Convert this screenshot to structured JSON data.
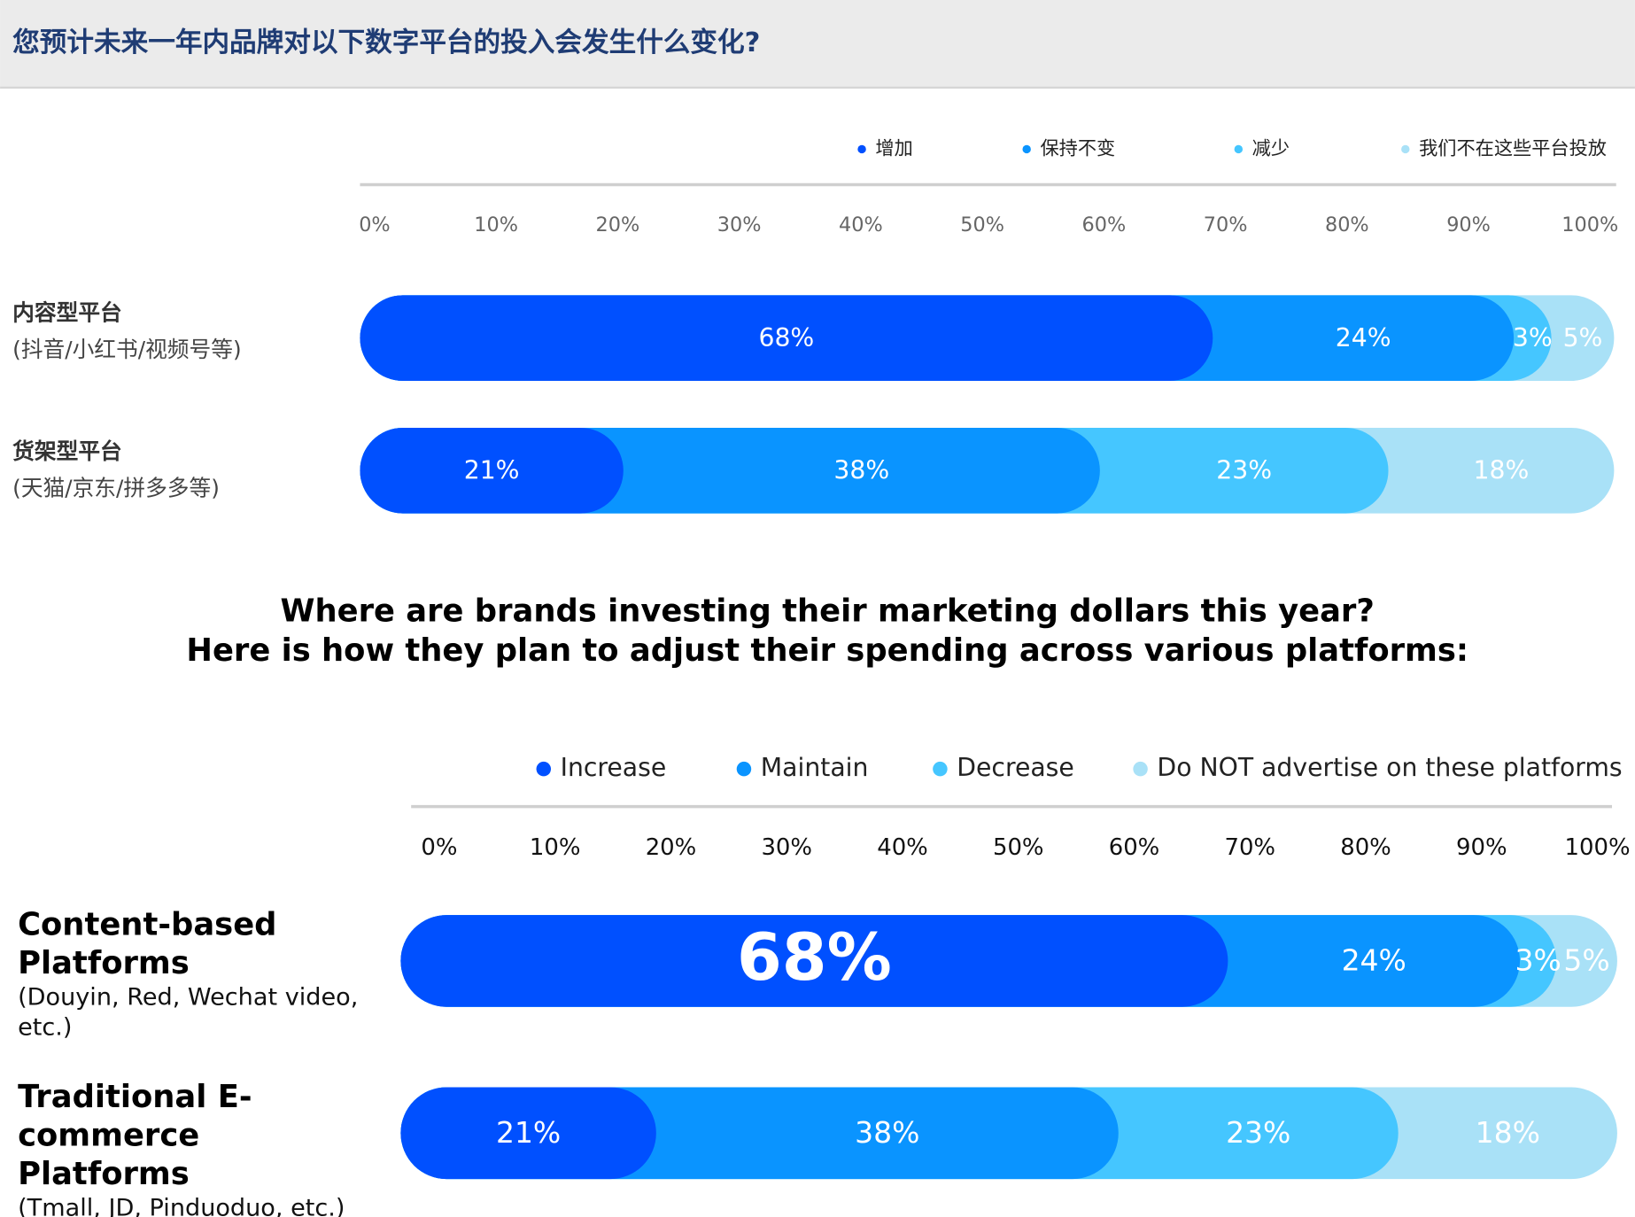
{
  "chart_data": [
    {
      "type": "bar",
      "orientation": "horizontal",
      "stacked": true,
      "title": "您预计未来一年内品牌对以下数字平台的投入会发生什么变化?",
      "categories": [
        "内容型平台",
        "货架型平台"
      ],
      "category_notes": [
        "(抖音/小红书/视频号等)",
        "(天猫/京东/拼多多等)"
      ],
      "series": [
        {
          "name": "增加",
          "color": "#0050ff",
          "values": [
            68,
            21
          ],
          "value_labels": [
            "68%",
            "21%"
          ]
        },
        {
          "name": "保持不变",
          "color": "#0a94ff",
          "values": [
            24,
            38
          ],
          "value_labels": [
            "24%",
            "38%"
          ]
        },
        {
          "name": "减少",
          "color": "#45c6ff",
          "values": [
            3,
            23
          ],
          "value_labels": [
            "3%",
            "23%"
          ]
        },
        {
          "name": "我们不在这些平台投放",
          "color": "#a9e1f7",
          "values": [
            5,
            18
          ],
          "value_labels": [
            "5%",
            "18%"
          ]
        }
      ],
      "xlim": [
        0,
        100
      ],
      "xticks": [
        {
          "value": 0,
          "label": "0%"
        },
        {
          "value": 10,
          "label": "10%"
        },
        {
          "value": 20,
          "label": "20%"
        },
        {
          "value": 30,
          "label": "30%"
        },
        {
          "value": 40,
          "label": "40%"
        },
        {
          "value": 50,
          "label": "50%"
        },
        {
          "value": 60,
          "label": "60%"
        },
        {
          "value": 70,
          "label": "70%"
        },
        {
          "value": 80,
          "label": "80%"
        },
        {
          "value": 90,
          "label": "90%"
        },
        {
          "value": 100,
          "label": "100%"
        }
      ]
    },
    {
      "type": "bar",
      "orientation": "horizontal",
      "stacked": true,
      "title": [
        "Where are brands investing their marketing dollars this year?",
        "Here is how they plan to adjust their spending across various platforms:"
      ],
      "categories": [
        "Content-based Platforms",
        "Traditional E-commerce Platforms"
      ],
      "category_notes": [
        "(Douyin, Red, Wechat video, etc.)",
        "(Tmall, JD, Pinduoduo, etc.)"
      ],
      "series": [
        {
          "name": "Increase",
          "color": "#0050ff",
          "values": [
            68,
            21
          ],
          "value_labels": [
            "68%",
            "21%"
          ]
        },
        {
          "name": "Maintain",
          "color": "#0a94ff",
          "values": [
            24,
            38
          ],
          "value_labels": [
            "24%",
            "38%"
          ]
        },
        {
          "name": "Decrease",
          "color": "#45c6ff",
          "values": [
            3,
            23
          ],
          "value_labels": [
            "3%",
            "23%"
          ]
        },
        {
          "name": "Do NOT advertise on these platforms",
          "color": "#a9e1f7",
          "values": [
            5,
            18
          ],
          "value_labels": [
            "5%",
            "18%"
          ]
        }
      ],
      "xlim": [
        0,
        100
      ],
      "xticks": [
        {
          "value": 0,
          "label": "0%"
        },
        {
          "value": 10,
          "label": "10%"
        },
        {
          "value": 20,
          "label": "20%"
        },
        {
          "value": 30,
          "label": "30%"
        },
        {
          "value": 40,
          "label": "40%"
        },
        {
          "value": 50,
          "label": "50%"
        },
        {
          "value": 60,
          "label": "60%"
        },
        {
          "value": 70,
          "label": "70%"
        },
        {
          "value": 80,
          "label": "80%"
        },
        {
          "value": 90,
          "label": "90%"
        },
        {
          "value": 100,
          "label": "100%"
        }
      ]
    }
  ]
}
